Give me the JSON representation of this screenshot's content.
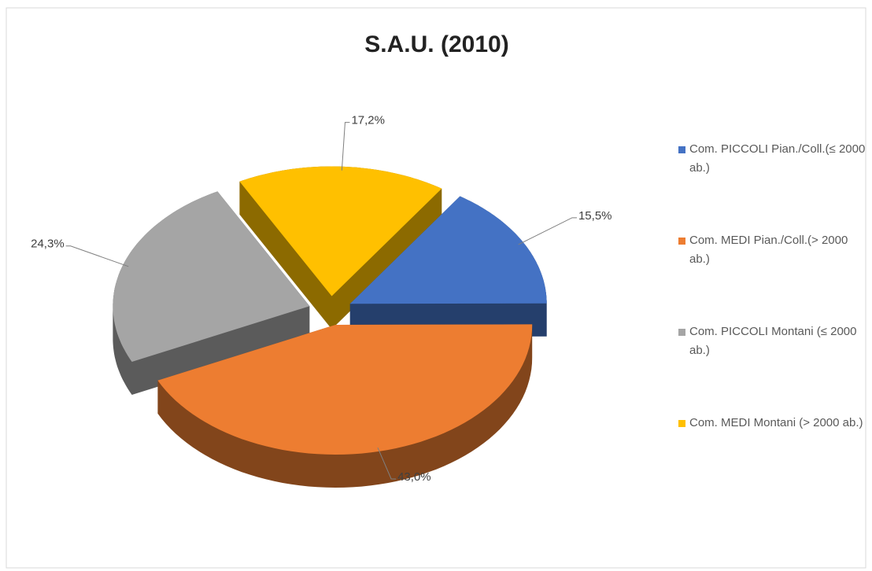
{
  "chart_data": {
    "type": "pie",
    "title": "S.A.U. (2010)",
    "categories": [
      "Com. PICCOLI Pian./Coll.(≤ 2000 ab.)",
      "Com. MEDI Pian./Coll.(> 2000 ab.)",
      "Com. PICCOLI Montani (≤ 2000 ab.)",
      "Com. MEDI Montani (> 2000 ab.)"
    ],
    "values": [
      15.5,
      43.0,
      24.3,
      17.2
    ],
    "value_labels": [
      "15,5%",
      "43,0%",
      "24,3%",
      "17,2%"
    ],
    "colors": [
      "#4472c4",
      "#ed7d31",
      "#a5a5a5",
      "#ffc000"
    ],
    "legend": "right"
  }
}
